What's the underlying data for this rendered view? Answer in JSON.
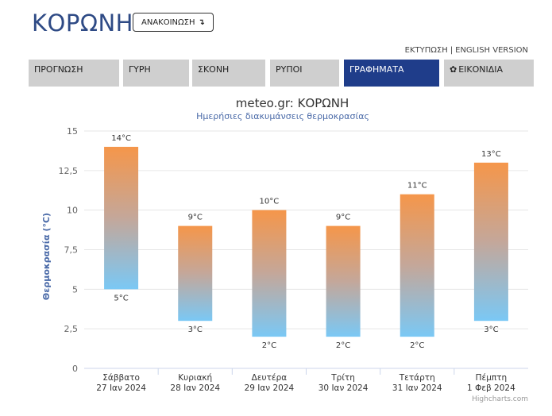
{
  "header": {
    "city": "ΚΟΡΩΝΗ",
    "announce_label": "ΑΝΑΚΟΙΝΩΣΗ",
    "announce_icon": "arrow-down-icon"
  },
  "links": {
    "print": "ΕΚΤΥΠΩΣΗ",
    "separator": "|",
    "english": "ENGLISH VERSION"
  },
  "tabs": [
    {
      "label": "ΠΡΟΓΝΩΣΗ",
      "active": false
    },
    {
      "label": "ΓΥΡΗ",
      "active": false
    },
    {
      "label": "ΣΚΟΝΗ",
      "active": false
    },
    {
      "label": "ΡΥΠΟΙ",
      "active": false
    },
    {
      "label": "ΓΡΑΦΗΜΑΤΑ",
      "active": true
    },
    {
      "label": "ΕΙΚΟΝΙΔΙΑ",
      "active": false,
      "icon": "gear-icon"
    }
  ],
  "colors": {
    "accent": "#1f3d8a",
    "tab_bg": "#cfcfcf",
    "bar_top": "#f5964a",
    "bar_bottom": "#7ac8f5"
  },
  "chart_data": {
    "type": "bar",
    "title": "meteo.gr: ΚΟΡΩΝΗ",
    "subtitle": "Ημερήσιες διακυμάνσεις θερμοκρασίας",
    "ylabel": "Θερμοκρασία (°C)",
    "ylim": [
      0,
      15
    ],
    "yticks": [
      "0",
      "2,5",
      "5",
      "7,5",
      "10",
      "12,5",
      "15"
    ],
    "categories": [
      {
        "day": "Σάββατο",
        "date": "27 Ιαν 2024"
      },
      {
        "day": "Κυριακή",
        "date": "28 Ιαν 2024"
      },
      {
        "day": "Δευτέρα",
        "date": "29 Ιαν 2024"
      },
      {
        "day": "Τρίτη",
        "date": "30 Ιαν 2024"
      },
      {
        "day": "Τετάρτη",
        "date": "31 Ιαν 2024"
      },
      {
        "day": "Πέμπτη",
        "date": "1 Φεβ 2024"
      }
    ],
    "low": [
      5,
      3,
      2,
      2,
      2,
      3
    ],
    "high": [
      14,
      9,
      10,
      9,
      11,
      13
    ],
    "low_labels": [
      "5°C",
      "3°C",
      "2°C",
      "2°C",
      "2°C",
      "3°C"
    ],
    "high_labels": [
      "14°C",
      "9°C",
      "10°C",
      "9°C",
      "11°C",
      "13°C"
    ],
    "credits": "Highcharts.com"
  }
}
